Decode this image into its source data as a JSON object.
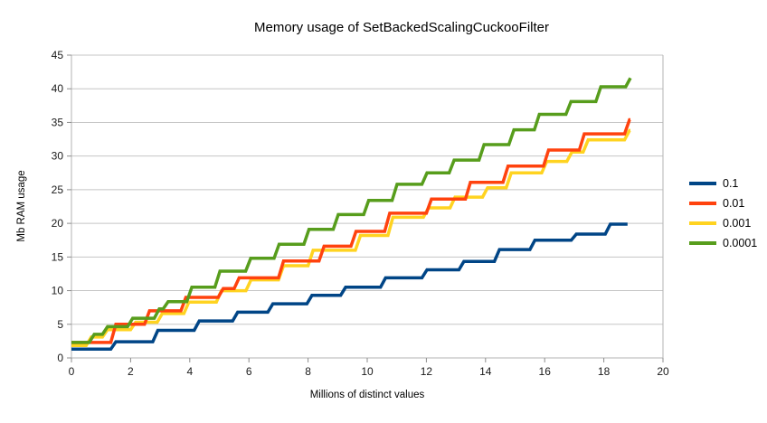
{
  "chart_title": "Memory usage of SetBackedScalingCuckooFilter",
  "chart_data": {
    "type": "line",
    "line_style": "step-after",
    "title": "Memory usage of SetBackedScalingCuckooFilter",
    "xlabel": "Millions of distinct values",
    "ylabel": "Mb RAM usage",
    "xlim": [
      0,
      20
    ],
    "ylim": [
      0,
      45
    ],
    "x_ticks": [
      0,
      2,
      4,
      6,
      8,
      10,
      12,
      14,
      16,
      18,
      20
    ],
    "y_ticks": [
      0,
      5,
      10,
      15,
      20,
      25,
      30,
      35,
      40,
      45
    ],
    "grid": "horizontal",
    "legend_position": "right",
    "grid_color": "#c5c5c5",
    "axis_color": "#b3b3b3",
    "tick_color": "#8c8c8c",
    "text_color": "#1a1a1a",
    "series": [
      {
        "name": "0.1",
        "color": "#004586",
        "start_level": 1.3,
        "end_x": 18.8,
        "steps": [
          [
            1.33,
            2.4
          ],
          [
            2.75,
            4.1
          ],
          [
            4.15,
            5.5
          ],
          [
            5.45,
            6.8
          ],
          [
            6.64,
            8.05
          ],
          [
            7.96,
            9.3
          ],
          [
            9.1,
            10.5
          ],
          [
            10.45,
            11.9
          ],
          [
            11.85,
            13.1
          ],
          [
            13.1,
            14.35
          ],
          [
            14.3,
            16.1
          ],
          [
            15.5,
            17.5
          ],
          [
            16.9,
            18.4
          ],
          [
            18.05,
            19.88
          ]
        ]
      },
      {
        "name": "0.01",
        "color": "#ff420e",
        "start_level": 2.3,
        "end_x": 18.9,
        "steps": [
          [
            1.33,
            5.0
          ],
          [
            2.47,
            7.0
          ],
          [
            3.7,
            9.0
          ],
          [
            4.96,
            10.3
          ],
          [
            5.5,
            11.9
          ],
          [
            7.0,
            14.4
          ],
          [
            8.37,
            16.6
          ],
          [
            9.45,
            18.8
          ],
          [
            10.59,
            21.5
          ],
          [
            12.0,
            23.6
          ],
          [
            13.32,
            26.1
          ],
          [
            14.59,
            28.5
          ],
          [
            15.96,
            30.9
          ],
          [
            17.17,
            33.3
          ],
          [
            18.7,
            35.4
          ]
        ]
      },
      {
        "name": "0.001",
        "color": "#ffd320",
        "start_level": 1.85,
        "end_x": 18.9,
        "steps": [
          [
            0.5,
            3.1
          ],
          [
            1.05,
            4.2
          ],
          [
            2.0,
            5.3
          ],
          [
            2.9,
            6.6
          ],
          [
            3.8,
            8.3
          ],
          [
            4.9,
            10.0
          ],
          [
            5.9,
            11.6
          ],
          [
            7.0,
            13.7
          ],
          [
            8.0,
            16.0
          ],
          [
            9.6,
            18.2
          ],
          [
            10.7,
            20.9
          ],
          [
            11.9,
            22.3
          ],
          [
            12.8,
            23.9
          ],
          [
            13.9,
            25.3
          ],
          [
            14.7,
            27.5
          ],
          [
            15.9,
            29.2
          ],
          [
            16.75,
            30.6
          ],
          [
            17.3,
            32.4
          ],
          [
            18.7,
            33.8
          ]
        ]
      },
      {
        "name": "0.0001",
        "color": "#579d1c",
        "start_level": 2.3,
        "end_x": 18.9,
        "steps": [
          [
            0.6,
            3.5
          ],
          [
            1.05,
            4.65
          ],
          [
            1.9,
            5.9
          ],
          [
            2.8,
            7.3
          ],
          [
            3.1,
            8.35
          ],
          [
            3.9,
            10.5
          ],
          [
            4.85,
            12.9
          ],
          [
            5.89,
            14.8
          ],
          [
            6.85,
            16.9
          ],
          [
            7.86,
            19.1
          ],
          [
            8.85,
            21.3
          ],
          [
            9.88,
            23.4
          ],
          [
            10.84,
            25.8
          ],
          [
            11.85,
            27.5
          ],
          [
            12.77,
            29.4
          ],
          [
            13.78,
            31.7
          ],
          [
            14.79,
            33.9
          ],
          [
            15.65,
            36.2
          ],
          [
            16.72,
            38.1
          ],
          [
            17.73,
            40.3
          ],
          [
            18.74,
            41.6
          ]
        ]
      }
    ],
    "legend": [
      "0.1",
      "0.01",
      "0.001",
      "0.0001"
    ]
  }
}
